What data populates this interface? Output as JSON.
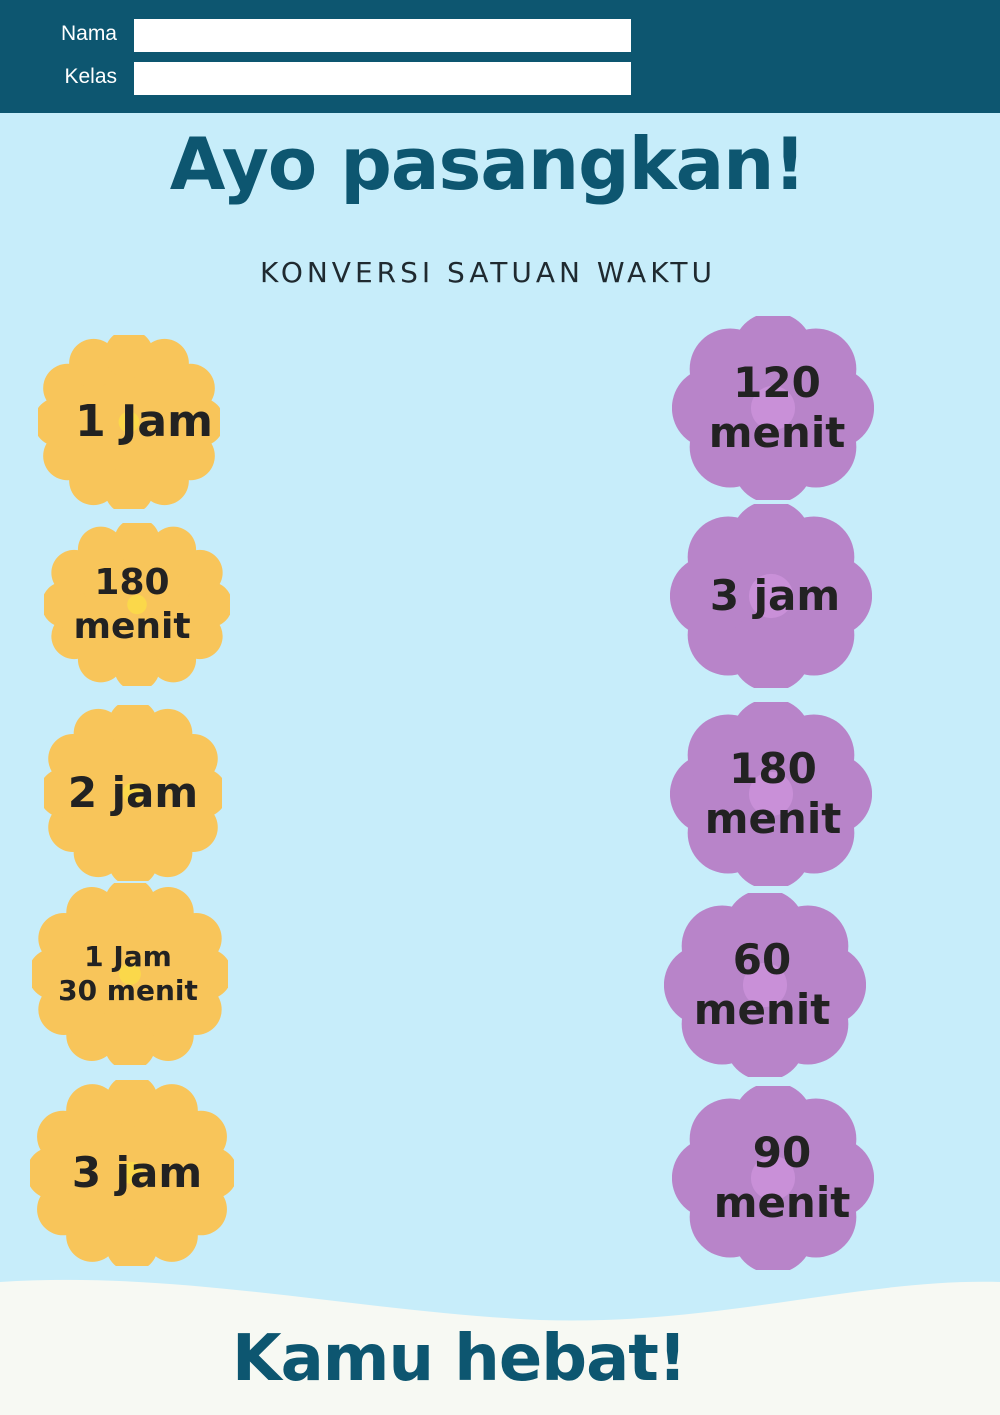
{
  "form": {
    "name_label": "Nama",
    "class_label": "Kelas",
    "name_value": "",
    "class_value": ""
  },
  "title": "Ayo pasangkan!",
  "subtitle": "KONVERSI SATUAN WAKTU",
  "left_items": [
    {
      "label": "1 Jam"
    },
    {
      "label": "180\nmenit"
    },
    {
      "label": "2 jam"
    },
    {
      "label": "1 Jam\n30 menit"
    },
    {
      "label": "3 jam"
    }
  ],
  "right_items": [
    {
      "label": "120\nmenit"
    },
    {
      "label": "3 jam"
    },
    {
      "label": "180\nmenit"
    },
    {
      "label": "60\nmenit"
    },
    {
      "label": "90\nmenit"
    }
  ],
  "footer": "Kamu hebat!",
  "colors": {
    "header": "#0d5670",
    "background": "#c7edfa",
    "left_flower": "#f8c55a",
    "left_flower_center": "#fbd84a",
    "right_flower": "#b884c9",
    "right_flower_center": "#c990d8",
    "footer_wave": "#f7f9f3"
  },
  "icons": {
    "left_item_shape": "scalloped-flower-icon",
    "right_item_shape": "petal-flower-icon"
  }
}
